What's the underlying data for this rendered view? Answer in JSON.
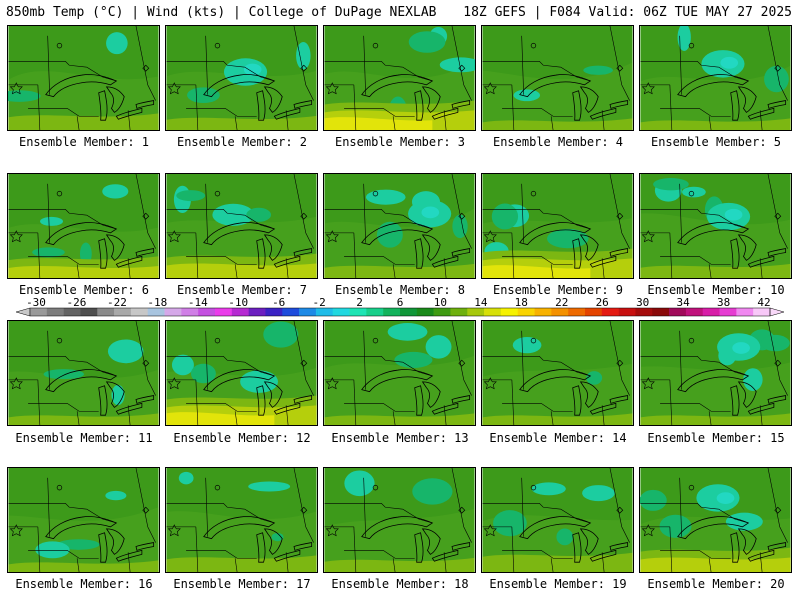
{
  "header": {
    "title_left": "850mb Temp (°C) | Wind (kts) | College of DuPage NEXLAB",
    "title_right": "18Z GEFS | F084 Valid: 06Z TUE MAY 27 2025"
  },
  "members": [
    "Ensemble Member: 1",
    "Ensemble Member: 2",
    "Ensemble Member: 3",
    "Ensemble Member: 4",
    "Ensemble Member: 5",
    "Ensemble Member: 6",
    "Ensemble Member: 7",
    "Ensemble Member: 8",
    "Ensemble Member: 9",
    "Ensemble Member: 10",
    "Ensemble Member: 11",
    "Ensemble Member: 12",
    "Ensemble Member: 13",
    "Ensemble Member: 14",
    "Ensemble Member: 15",
    "Ensemble Member: 16",
    "Ensemble Member: 17",
    "Ensemble Member: 18",
    "Ensemble Member: 19",
    "Ensemble Member: 20"
  ],
  "colorbar": {
    "labels": [
      "-30",
      "-26",
      "-22",
      "-18",
      "-14",
      "-10",
      "-6",
      "-2",
      "2",
      "6",
      "10",
      "14",
      "18",
      "22",
      "26",
      "30",
      "34",
      "38",
      "42"
    ],
    "colors": [
      "#9a9a9a",
      "#7d7d7d",
      "#646464",
      "#4f4f4f",
      "#8a8a8a",
      "#a9a9a9",
      "#c7c7c7",
      "#a8c4df",
      "#d5a8e8",
      "#d07fe6",
      "#c450e0",
      "#ea3cea",
      "#b62ad2",
      "#6c1fc0",
      "#3a22c4",
      "#1e4cdc",
      "#1e8ae6",
      "#1fbce8",
      "#21d8e0",
      "#1ee4b4",
      "#18cf8a",
      "#13b35c",
      "#109638",
      "#1a8a1a",
      "#3f9b12",
      "#6eb00e",
      "#a6c80c",
      "#d7e008",
      "#f6f200",
      "#f9d400",
      "#f8b200",
      "#f49100",
      "#ee6a00",
      "#e44400",
      "#e41a12",
      "#c81010",
      "#a50c0c",
      "#8a0a0a",
      "#a00a5a",
      "#c0127c",
      "#d81ea8",
      "#e63cd2",
      "#f088f0",
      "#f8c8f8"
    ],
    "arrow_left_color": "#c8c8c8",
    "arrow_right_color": "#f8d8f8"
  },
  "palette": {
    "base": "#3d9a1a",
    "lighter": "#4fa621",
    "cool": "#17b56a",
    "cooler": "#1ccda0",
    "teal": "#22d8c2",
    "warm": "#7cb712",
    "warmer": "#b5cf0c",
    "yellow": "#e2e40a",
    "hot": "#f4c400"
  }
}
